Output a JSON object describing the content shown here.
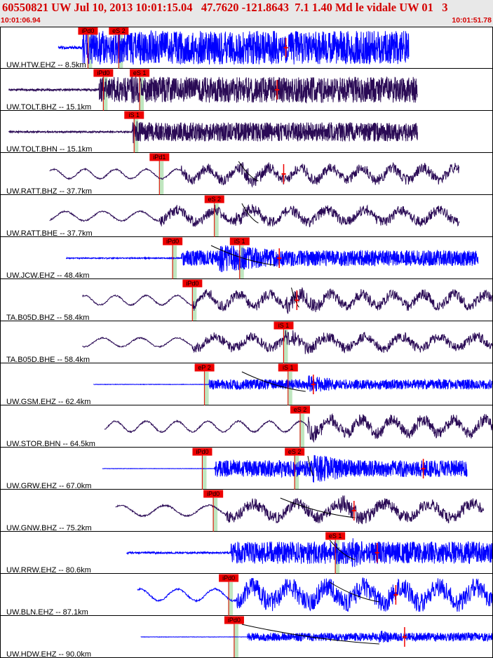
{
  "header": {
    "title": "60550821 UW Jul 10, 2013 10:01:15.04   47.7620 -121.8643  7.1 1.40 Md le vidale UW 01   3",
    "start_time": "10:01:06.94",
    "end_time": "10:01:51.78"
  },
  "colors": {
    "header_bg": "#e8e8e8",
    "header_text": "#d40000",
    "trace_blue": "#0000ff",
    "trace_purple": "#2a0a55",
    "pick_box": "#ee0000",
    "pick_band": "#bfe6bf",
    "travel_curve": "#000000",
    "marker": "#ee0000"
  },
  "chart_data": {
    "type": "line",
    "title": "60550821 UW Jul 10, 2013 10:01:15.04   47.7620 -121.8643  7.1 1.40 Md le vidale UW 01   3",
    "x_unit": "time (UTC)",
    "time_range": [
      "10:01:06.94",
      "10:01:51.78"
    ],
    "span_seconds": 44.84,
    "series": [
      {
        "name": "UW.HTW.EHZ",
        "label": "UW.HTW.EHZ -- 8.5km",
        "distance_km": 8.5,
        "color": "blue",
        "style": "hf",
        "trace": [
          5.3,
          37.2
        ],
        "amp": 1.0,
        "env": [
          7.5,
          1.0,
          15.0,
          3.2
        ],
        "picks": [
          {
            "label": "iPd0",
            "t": 8.0
          },
          {
            "label": "eS 2",
            "t": 10.8
          }
        ],
        "marker": 26.0,
        "curve": null
      },
      {
        "name": "UW.TOLT.BHZ",
        "label": "UW.TOLT.BHZ -- 15.1km",
        "distance_km": 15.1,
        "color": "purple",
        "style": "hf",
        "trace": [
          0.8,
          38.0
        ],
        "amp": 0.85,
        "env": [
          9.0,
          0.9,
          12.0,
          3.5
        ],
        "picks": [
          {
            "label": "iPd0",
            "t": 9.4
          },
          {
            "label": "eS 1",
            "t": 12.7
          }
        ],
        "marker": 25.2,
        "curve": null
      },
      {
        "name": "UW.TOLT.BHN",
        "label": "UW.TOLT.BHN -- 15.1km",
        "distance_km": 15.1,
        "color": "purple",
        "style": "hf",
        "trace": [
          0.8,
          38.0
        ],
        "amp": 0.75,
        "env": [
          12.0,
          0.75,
          12.0,
          3.5
        ],
        "picks": [
          {
            "label": "iS 1",
            "t": 12.2
          }
        ],
        "marker": null,
        "curve": null
      },
      {
        "name": "UW.RATT.BHZ",
        "label": "UW.RATT.BHZ -- 37.7km",
        "distance_km": 37.7,
        "color": "purple",
        "style": "lf",
        "trace": [
          4.5,
          41.8
        ],
        "amp": 0.8,
        "env": [
          16.5,
          0.55,
          22.0,
          5.0
        ],
        "picks": [
          {
            "label": "iPd1",
            "t": 14.5
          }
        ],
        "marker": 25.8,
        "curve": [
          21.7,
          23.5
        ]
      },
      {
        "name": "UW.RATT.BHE",
        "label": "UW.RATT.BHE -- 37.7km",
        "distance_km": 37.7,
        "color": "purple",
        "style": "lf",
        "trace": [
          4.5,
          41.8
        ],
        "amp": 0.8,
        "env": [
          14.5,
          0.3,
          21.5,
          4.0
        ],
        "picks": [
          {
            "label": "eS 2",
            "t": 19.5
          }
        ],
        "marker": null,
        "curve": [
          22.0,
          23.5
        ]
      },
      {
        "name": "UW.JCW.EHZ",
        "label": "UW.JCW.EHZ -- 48.4km",
        "distance_km": 48.4,
        "color": "blue",
        "style": "hf",
        "trace": [
          6.0,
          43.5
        ],
        "amp": 0.85,
        "env": [
          16.5,
          0.45,
          20.0,
          10.0
        ],
        "picks": [
          {
            "label": "iPd0",
            "t": 15.7
          },
          {
            "label": "iS 1",
            "t": 21.8
          }
        ],
        "marker": 25.4,
        "curve": [
          19.2,
          25.0
        ]
      },
      {
        "name": "TA.B05D.BHZ",
        "label": "TA.B05D.BHZ -- 58.4km",
        "distance_km": 58.4,
        "color": "purple",
        "style": "lf",
        "trace": [
          7.5,
          45.8
        ],
        "amp": 0.8,
        "env": [
          17.5,
          0.45,
          26.0,
          8.0
        ],
        "picks": [
          {
            "label": "iPd0",
            "t": 17.5
          }
        ],
        "marker": 27.0,
        "curve": [
          26.5,
          27.2
        ]
      },
      {
        "name": "TA.B05D.BHE",
        "label": "TA.B05D.BHE -- 58.4km",
        "distance_km": 58.4,
        "color": "purple",
        "style": "lf",
        "trace": [
          7.5,
          45.8
        ],
        "amp": 0.75,
        "env": [
          17.5,
          0.4,
          26.0,
          7.0
        ],
        "picks": [
          {
            "label": "iS 1",
            "t": 25.8
          }
        ],
        "marker": null,
        "curve": null
      },
      {
        "name": "UW.GSM.EHZ",
        "label": "UW.GSM.EHZ -- 62.4km",
        "distance_km": 62.4,
        "color": "blue",
        "style": "hf",
        "trace": [
          8.5,
          45.8
        ],
        "amp": 0.55,
        "env": [
          19.0,
          0.25,
          28.0,
          5.0
        ],
        "picks": [
          {
            "label": "eP 2",
            "t": 18.6
          },
          {
            "label": "iS 1",
            "t": 26.2
          }
        ],
        "marker": 28.5,
        "curve": [
          22.0,
          27.8
        ]
      },
      {
        "name": "UW.STOR.BHN",
        "label": "UW.STOR.BHN -- 64.5km",
        "distance_km": 64.5,
        "color": "purple",
        "style": "lf",
        "trace": [
          9.5,
          46.2
        ],
        "amp": 0.9,
        "env": [
          28.0,
          0.35,
          28.0,
          3.0
        ],
        "picks": [
          {
            "label": "eS 2",
            "t": 27.3
          }
        ],
        "marker": null,
        "curve": null
      },
      {
        "name": "UW.GRW.EHZ",
        "label": "UW.GRW.EHZ -- 67.0km",
        "distance_km": 67.0,
        "color": "blue",
        "style": "hf",
        "trace": [
          9.3,
          42.5
        ],
        "amp": 0.9,
        "env": [
          19.5,
          0.12,
          28.5,
          6.0
        ],
        "picks": [
          {
            "label": "iPd0",
            "t": 18.4
          },
          {
            "label": "eS 2",
            "t": 26.8
          }
        ],
        "marker": 38.5,
        "curve": [
          28.0,
          28.5
        ]
      },
      {
        "name": "UW.GNW.BHZ",
        "label": "UW.GNW.BHZ -- 75.2km",
        "distance_km": 75.2,
        "color": "purple",
        "style": "lf",
        "trace": [
          10.5,
          44.0
        ],
        "amp": 0.9,
        "env": [
          20.5,
          0.4,
          31.0,
          6.0
        ],
        "picks": [
          {
            "label": "iPd0",
            "t": 19.4
          }
        ],
        "marker": 32.2,
        "curve": [
          25.5,
          32.3
        ]
      },
      {
        "name": "UW.RRW.EHZ",
        "label": "UW.RRW.EHZ -- 80.6km",
        "distance_km": 80.6,
        "color": "blue",
        "style": "hf",
        "trace": [
          11.5,
          45.0
        ],
        "amp": 0.95,
        "env": [
          21.0,
          0.7,
          32.0,
          3.0
        ],
        "picks": [
          {
            "label": "eS 1",
            "t": 30.5
          }
        ],
        "marker": 34.3,
        "curve": [
          30.0,
          32.3
        ]
      },
      {
        "name": "UW.BLN.EHZ",
        "label": "UW.BLN.EHZ -- 87.1km",
        "distance_km": 87.1,
        "color": "blue",
        "style": "lf",
        "trace": [
          12.5,
          46.0
        ],
        "amp": 1.0,
        "env": [
          21.5,
          0.85,
          33.5,
          1.0
        ],
        "picks": [
          {
            "label": "iPd0",
            "t": 20.8
          }
        ],
        "marker": 36.0,
        "curve": [
          30.0,
          34.5
        ]
      },
      {
        "name": "UW.HDW.EHZ",
        "label": "UW.HDW.EHZ -- 90.0km",
        "distance_km": 90.0,
        "color": "blue",
        "style": "hf",
        "trace": [
          12.8,
          45.8
        ],
        "amp": 0.45,
        "env": [
          22.5,
          0.25,
          34.5,
          2.5
        ],
        "picks": [
          {
            "label": "iPd0",
            "t": 21.3
          }
        ],
        "marker": 36.8,
        "curve": [
          22.0,
          34.5
        ]
      }
    ]
  }
}
